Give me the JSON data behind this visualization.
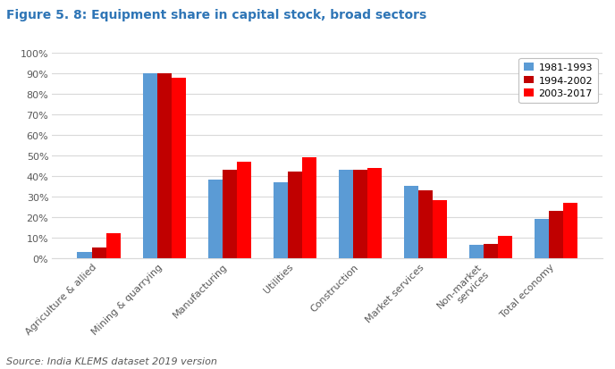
{
  "title": "Figure 5. 8: Equipment share in capital stock, broad sectors",
  "source": "Source: India KLEMS dataset 2019 version",
  "categories": [
    "Agriculture & allied",
    "Mining & quarrying",
    "Manufacturing",
    "Utilities",
    "Construction",
    "Market services",
    "Non-market\nservices",
    "Total economy"
  ],
  "series": {
    "1981-1993": [
      0.03,
      0.9,
      0.38,
      0.37,
      0.43,
      0.35,
      0.065,
      0.19
    ],
    "1994-2002": [
      0.05,
      0.9,
      0.43,
      0.42,
      0.43,
      0.33,
      0.07,
      0.23
    ],
    "2003-2017": [
      0.12,
      0.88,
      0.47,
      0.49,
      0.44,
      0.28,
      0.11,
      0.27
    ]
  },
  "colors": {
    "1981-1993": "#5B9BD5",
    "1994-2002": "#C00000",
    "2003-2017": "#FF0000"
  },
  "legend_labels": [
    "1981-1993",
    "1994-2002",
    "2003-2017"
  ],
  "ylim": [
    0,
    1.0
  ],
  "yticks": [
    0.0,
    0.1,
    0.2,
    0.3,
    0.4,
    0.5,
    0.6,
    0.7,
    0.8,
    0.9,
    1.0
  ],
  "ytick_labels": [
    "0%",
    "10%",
    "20%",
    "30%",
    "40%",
    "50%",
    "60%",
    "70%",
    "80%",
    "90%",
    "100%"
  ],
  "title_color": "#2E75B6",
  "title_fontsize": 10,
  "source_fontsize": 8,
  "bar_width": 0.22,
  "figure_width": 6.88,
  "figure_height": 4.14,
  "dpi": 100,
  "bg_color": "#FFFFFF",
  "grid_color": "#D9D9D9",
  "axis_label_color": "#595959",
  "tick_label_fontsize": 8
}
